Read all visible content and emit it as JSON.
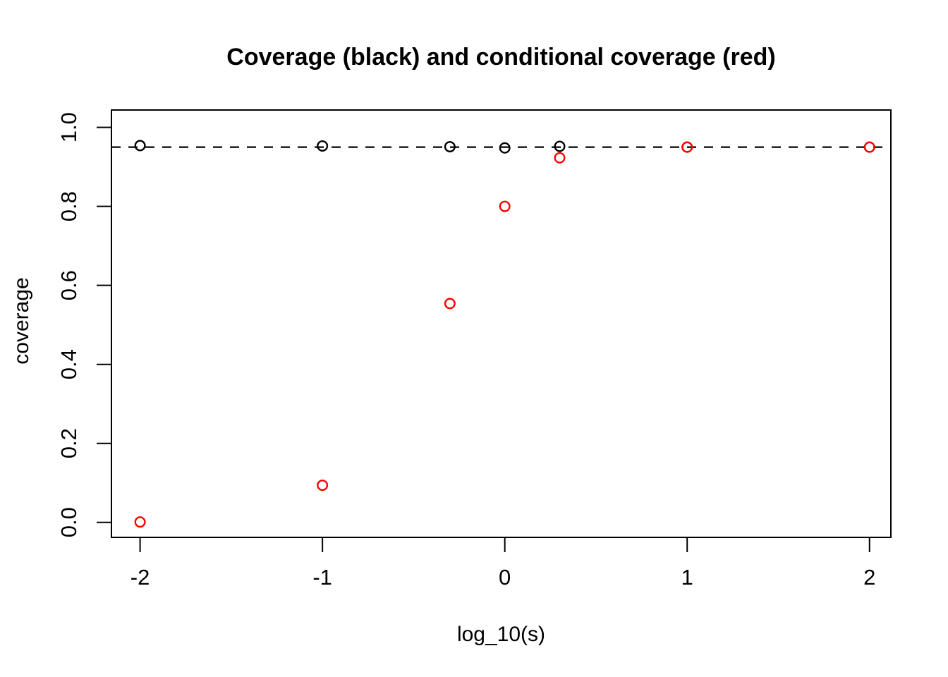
{
  "chart_data": {
    "type": "scatter",
    "title": "Coverage (black) and conditional coverage (red)",
    "xlabel": "log_10(s)",
    "ylabel": "coverage",
    "xlim": [
      -2.157,
      2.117
    ],
    "ylim": [
      -0.038,
      1.044
    ],
    "x_ticks": [
      -2,
      -1,
      0,
      1,
      2
    ],
    "x_tick_labels": [
      "-2",
      "-1",
      "0",
      "1",
      "2"
    ],
    "y_ticks": [
      0.0,
      0.2,
      0.4,
      0.6,
      0.8,
      1.0
    ],
    "y_tick_labels": [
      "0.0",
      "0.2",
      "0.4",
      "0.6",
      "0.8",
      "1.0"
    ],
    "grid": false,
    "legend_position": "none",
    "reference_line": {
      "y": 0.95,
      "style": "dashed",
      "color": "#000000"
    },
    "marker": "open-circle",
    "colors": {
      "coverage": "#000000",
      "conditional_coverage": "#ff0000",
      "axis": "#000000",
      "background": "#ffffff"
    },
    "x": [
      -2,
      -1,
      -0.301,
      0,
      0.301,
      1,
      2
    ],
    "series": [
      {
        "name": "coverage (black)",
        "color": "#000000",
        "values": [
          0.954,
          0.953,
          0.951,
          0.948,
          0.952,
          0.95,
          0.95
        ]
      },
      {
        "name": "conditional coverage (red)",
        "color": "#ff0000",
        "values": [
          0.001,
          0.094,
          0.554,
          0.8,
          0.923,
          0.95,
          0.95
        ]
      }
    ]
  }
}
